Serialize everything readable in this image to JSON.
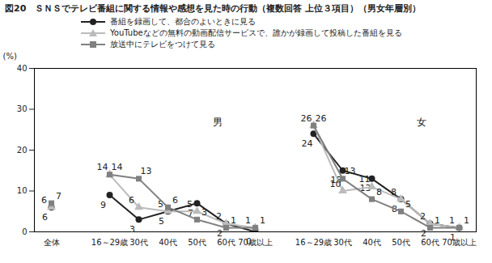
{
  "chart_data": {
    "type": "line",
    "title": "図20　ＳＮＳでテレビ番組に関する情報や感想を見た時の行動（複数回答 上位３項目）（男女年層別）",
    "y_label": "(%)",
    "categories": [
      "全体",
      null,
      "16～29歳",
      "30代",
      "40代",
      "50代",
      "60代",
      "70歳以上",
      null,
      "16～29歳",
      "30代",
      "40代",
      "50代",
      "60代",
      "70歳以上"
    ],
    "annotations": [
      "男",
      "女"
    ],
    "series": [
      {
        "name": "番組を録画して、都合のよいときに見る",
        "color": "#222222",
        "marker": "circle",
        "values": [
          6,
          null,
          9,
          3,
          5,
          7,
          2,
          0,
          null,
          24,
          15,
          13,
          8,
          2,
          1
        ]
      },
      {
        "name": "YouTubeなどの無料の動画配信サービスで、誰かが録画して投稿した番組を見る",
        "color": "#bbbbbb",
        "marker": "triangle",
        "values": [
          6,
          null,
          14,
          6,
          5,
          5,
          2,
          1,
          null,
          26,
          10,
          11,
          8,
          2,
          1
        ]
      },
      {
        "name": "放送中にテレビをつけて見る",
        "color": "#808080",
        "marker": "square",
        "values": [
          7,
          null,
          14,
          13,
          6,
          3,
          1,
          1,
          null,
          26,
          13,
          8,
          5,
          1,
          1
        ]
      }
    ],
    "ylim": [
      0,
      40
    ],
    "yticks": [
      0,
      10,
      20,
      30,
      40
    ],
    "grid": false,
    "data_labels": true
  }
}
